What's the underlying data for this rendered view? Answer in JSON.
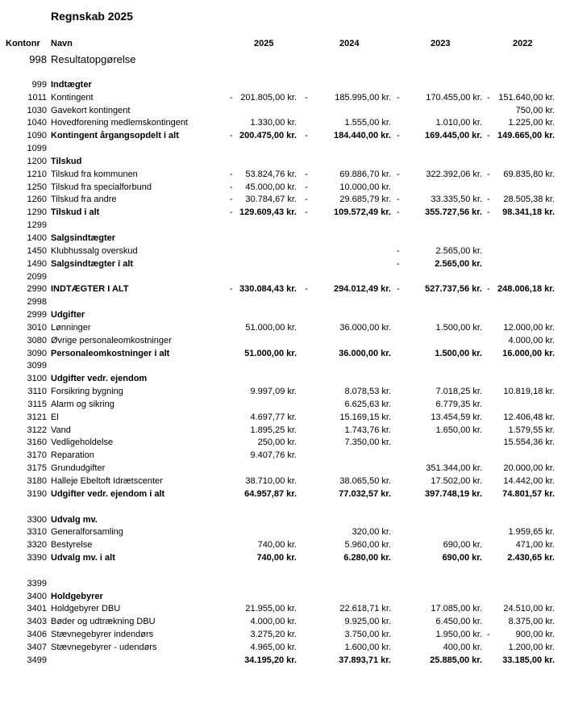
{
  "title": "Regnskab 2025",
  "headers": {
    "kontonr": "Kontonr",
    "navn": "Navn",
    "years": [
      "2025",
      "2024",
      "2023",
      "2022"
    ]
  },
  "rows": [
    {
      "k": "998",
      "n": "Resultatopgørelse",
      "style": "big"
    },
    {
      "blank": true
    },
    {
      "k": "999",
      "n": "Indtægter",
      "style": "bold"
    },
    {
      "k": "1011",
      "n": "Kontingent",
      "v": [
        [
          "-",
          "201.805,00 kr."
        ],
        [
          "-",
          "185.995,00 kr."
        ],
        [
          "-",
          "170.455,00 kr."
        ],
        [
          "-",
          "151.640,00 kr."
        ]
      ]
    },
    {
      "k": "1030",
      "n": "Gavekort kontingent",
      "v": [
        null,
        null,
        null,
        [
          "",
          "750,00 kr."
        ]
      ]
    },
    {
      "k": "1040",
      "n": "Hovedforening medlemskontingent",
      "v": [
        [
          "",
          "1.330,00 kr."
        ],
        [
          "",
          "1.555,00 kr."
        ],
        [
          "",
          "1.010,00 kr."
        ],
        [
          "",
          "1.225,00 kr."
        ]
      ]
    },
    {
      "k": "1090",
      "n": "Kontingent årgangsopdelt i alt",
      "style": "bold",
      "v": [
        [
          "-",
          "200.475,00 kr."
        ],
        [
          "-",
          "184.440,00 kr."
        ],
        [
          "-",
          "169.445,00 kr."
        ],
        [
          "-",
          "149.665,00 kr."
        ]
      ]
    },
    {
      "k": "1099",
      "n": ""
    },
    {
      "k": "1200",
      "n": "Tilskud",
      "style": "bold"
    },
    {
      "k": "1210",
      "n": "Tilskud fra kommunen",
      "v": [
        [
          "-",
          "53.824,76 kr."
        ],
        [
          "-",
          "69.886,70 kr."
        ],
        [
          "-",
          "322.392,06 kr."
        ],
        [
          "-",
          "69.835,80 kr."
        ]
      ]
    },
    {
      "k": "1250",
      "n": "Tilskud fra specialforbund",
      "v": [
        [
          "-",
          "45.000,00 kr."
        ],
        [
          "-",
          "10.000,00 kr."
        ],
        null,
        null
      ]
    },
    {
      "k": "1260",
      "n": "Tilskud fra andre",
      "v": [
        [
          "-",
          "30.784,67 kr."
        ],
        [
          "-",
          "29.685,79 kr."
        ],
        [
          "-",
          "33.335,50 kr."
        ],
        [
          "-",
          "28.505,38 kr."
        ]
      ]
    },
    {
      "k": "1290",
      "n": "Tilskud i alt",
      "style": "bold",
      "v": [
        [
          "-",
          "129.609,43 kr."
        ],
        [
          "-",
          "109.572,49 kr."
        ],
        [
          "-",
          "355.727,56 kr."
        ],
        [
          "-",
          "98.341,18 kr."
        ]
      ]
    },
    {
      "k": "1299",
      "n": ""
    },
    {
      "k": "1400",
      "n": "Salgsindtægter",
      "style": "bold"
    },
    {
      "k": "1450",
      "n": "Klubhussalg overskud",
      "v": [
        null,
        null,
        [
          "-",
          "2.565,00 kr."
        ],
        null
      ]
    },
    {
      "k": "1490",
      "n": "Salgsindtægter i alt",
      "style": "bold",
      "v": [
        null,
        null,
        [
          "-",
          "2.565,00 kr."
        ],
        null
      ]
    },
    {
      "k": "2099",
      "n": ""
    },
    {
      "k": "2990",
      "n": "INDTÆGTER I ALT",
      "style": "bold",
      "v": [
        [
          "-",
          "330.084,43 kr."
        ],
        [
          "-",
          "294.012,49 kr."
        ],
        [
          "-",
          "527.737,56 kr."
        ],
        [
          "-",
          "248.006,18 kr."
        ]
      ]
    },
    {
      "k": "2998",
      "n": ""
    },
    {
      "k": "2999",
      "n": "Udgifter",
      "style": "bold"
    },
    {
      "k": "3010",
      "n": "Lønninger",
      "v": [
        [
          "",
          "51.000,00 kr."
        ],
        [
          "",
          "36.000,00 kr."
        ],
        [
          "",
          "1.500,00 kr."
        ],
        [
          "",
          "12.000,00 kr."
        ]
      ]
    },
    {
      "k": "3080",
      "n": "Øvrige personaleomkostninger",
      "v": [
        null,
        null,
        null,
        [
          "",
          "4.000,00 kr."
        ]
      ]
    },
    {
      "k": "3090",
      "n": "Personaleomkostninger i alt",
      "style": "bold",
      "v": [
        [
          "",
          "51.000,00 kr."
        ],
        [
          "",
          "36.000,00 kr."
        ],
        [
          "",
          "1.500,00 kr."
        ],
        [
          "",
          "16.000,00 kr."
        ]
      ]
    },
    {
      "k": "3099",
      "n": ""
    },
    {
      "k": "3100",
      "n": "Udgifter vedr. ejendom",
      "style": "bold"
    },
    {
      "k": "3110",
      "n": "Forsikring bygning",
      "v": [
        [
          "",
          "9.997,09 kr."
        ],
        [
          "",
          "8.078,53 kr."
        ],
        [
          "",
          "7.018,25 kr."
        ],
        [
          "",
          "10.819,18 kr."
        ]
      ]
    },
    {
      "k": "3115",
      "n": "Alarm og sikring",
      "v": [
        null,
        [
          "",
          "6.625,63 kr."
        ],
        [
          "",
          "6.779,35 kr."
        ],
        null
      ]
    },
    {
      "k": "3121",
      "n": "El",
      "v": [
        [
          "",
          "4.697,77 kr."
        ],
        [
          "",
          "15.169,15 kr."
        ],
        [
          "",
          "13.454,59 kr."
        ],
        [
          "",
          "12.406,48 kr."
        ]
      ]
    },
    {
      "k": "3122",
      "n": "Vand",
      "v": [
        [
          "",
          "1.895,25 kr."
        ],
        [
          "",
          "1.743,76 kr."
        ],
        [
          "",
          "1.650,00 kr."
        ],
        [
          "",
          "1.579,55 kr."
        ]
      ]
    },
    {
      "k": "3160",
      "n": "Vedligeholdelse",
      "v": [
        [
          "",
          "250,00 kr."
        ],
        [
          "",
          "7.350,00 kr."
        ],
        null,
        [
          "",
          "15.554,36 kr."
        ]
      ]
    },
    {
      "k": "3170",
      "n": "Reparation",
      "v": [
        [
          "",
          "9.407,76 kr."
        ],
        null,
        null,
        null
      ]
    },
    {
      "k": "3175",
      "n": "Grundudgifter",
      "v": [
        null,
        null,
        [
          "",
          "351.344,00 kr."
        ],
        [
          "",
          "20.000,00 kr."
        ]
      ]
    },
    {
      "k": "3180",
      "n": "Halleje Ebeltoft Idrætscenter",
      "v": [
        [
          "",
          "38.710,00 kr."
        ],
        [
          "",
          "38.065,50 kr."
        ],
        [
          "",
          "17.502,00 kr."
        ],
        [
          "",
          "14.442,00 kr."
        ]
      ]
    },
    {
      "k": "3190",
      "n": "Udgifter vedr. ejendom i alt",
      "style": "bold",
      "v": [
        [
          "",
          "64.957,87 kr."
        ],
        [
          "",
          "77.032,57 kr."
        ],
        [
          "",
          "397.748,19 kr."
        ],
        [
          "",
          "74.801,57 kr."
        ]
      ]
    },
    {
      "blank": true
    },
    {
      "k": "3300",
      "n": "Udvalg mv.",
      "style": "bold"
    },
    {
      "k": "3310",
      "n": "Generalforsamling",
      "v": [
        null,
        [
          "",
          "320,00 kr."
        ],
        null,
        [
          "",
          "1.959,65 kr."
        ]
      ]
    },
    {
      "k": "3320",
      "n": "Bestyrelse",
      "v": [
        [
          "",
          "740,00 kr."
        ],
        [
          "",
          "5.960,00 kr."
        ],
        [
          "",
          "690,00 kr."
        ],
        [
          "",
          "471,00 kr."
        ]
      ]
    },
    {
      "k": "3390",
      "n": "Udvalg mv. i alt",
      "style": "bold",
      "v": [
        [
          "",
          "740,00 kr."
        ],
        [
          "",
          "6.280,00 kr."
        ],
        [
          "",
          "690,00 kr."
        ],
        [
          "",
          "2.430,65 kr."
        ]
      ]
    },
    {
      "blank": true
    },
    {
      "k": "3399",
      "n": ""
    },
    {
      "k": "3400",
      "n": "Holdgebyrer",
      "style": "bold"
    },
    {
      "k": "3401",
      "n": "Holdgebyrer DBU",
      "v": [
        [
          "",
          "21.955,00 kr."
        ],
        [
          "",
          "22.618,71 kr."
        ],
        [
          "",
          "17.085,00 kr."
        ],
        [
          "",
          "24.510,00 kr."
        ]
      ]
    },
    {
      "k": "3403",
      "n": "Bøder og udtrækning DBU",
      "v": [
        [
          "",
          "4.000,00 kr."
        ],
        [
          "",
          "9.925,00 kr."
        ],
        [
          "",
          "6.450,00 kr."
        ],
        [
          "",
          "8.375,00 kr."
        ]
      ]
    },
    {
      "k": "3406",
      "n": "Stævnegebyrer indendørs",
      "v": [
        [
          "",
          "3.275,20 kr."
        ],
        [
          "",
          "3.750,00 kr."
        ],
        [
          "",
          "1.950,00 kr."
        ],
        [
          "-",
          "900,00 kr."
        ]
      ]
    },
    {
      "k": "3407",
      "n": "Stævnegebyrer - udendørs",
      "v": [
        [
          "",
          "4.965,00 kr."
        ],
        [
          "",
          "1.600,00 kr."
        ],
        [
          "",
          "400,00 kr."
        ],
        [
          "",
          "1.200,00 kr."
        ]
      ]
    },
    {
      "k": "3499",
      "n": "",
      "style": "bold",
      "v": [
        [
          "",
          "34.195,20 kr."
        ],
        [
          "",
          "37.893,71 kr."
        ],
        [
          "",
          "25.885,00 kr."
        ],
        [
          "",
          "33.185,00 kr."
        ]
      ]
    }
  ]
}
